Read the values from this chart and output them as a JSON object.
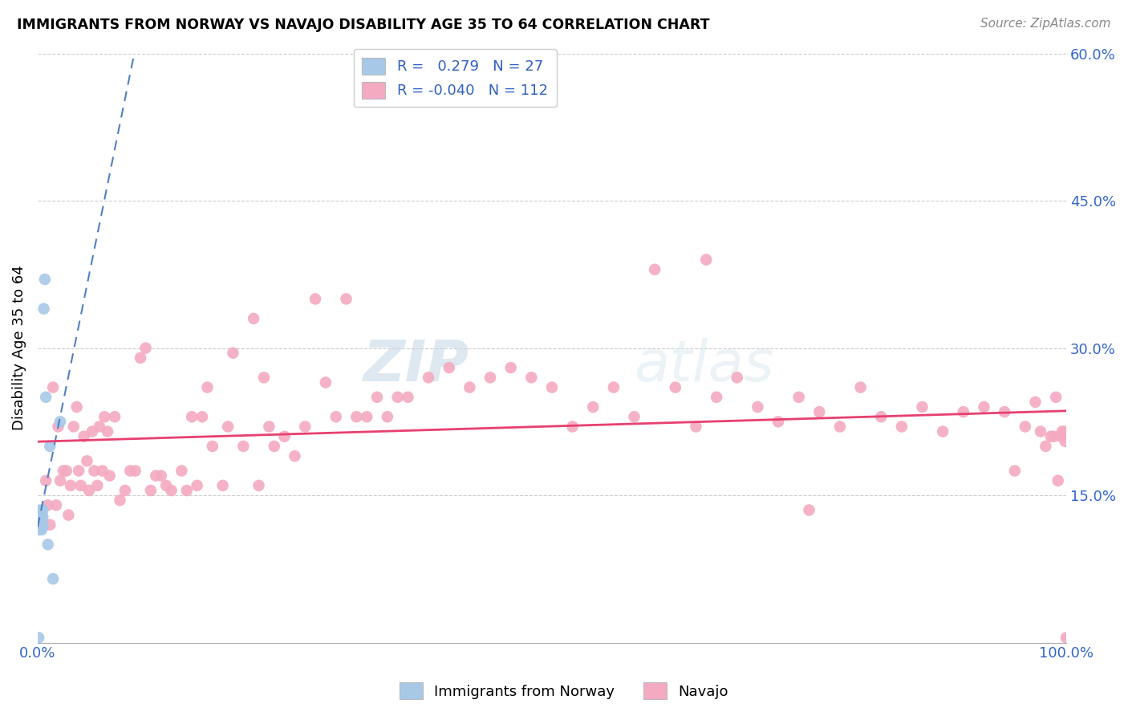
{
  "title": "IMMIGRANTS FROM NORWAY VS NAVAJO DISABILITY AGE 35 TO 64 CORRELATION CHART",
  "source": "Source: ZipAtlas.com",
  "ylabel": "Disability Age 35 to 64",
  "xlim": [
    0,
    1.0
  ],
  "ylim": [
    0,
    0.6
  ],
  "x_ticks": [
    0.0,
    0.1,
    0.2,
    0.3,
    0.4,
    0.5,
    0.6,
    0.7,
    0.8,
    0.9,
    1.0
  ],
  "x_tick_labels": [
    "0.0%",
    "",
    "",
    "",
    "",
    "",
    "",
    "",
    "",
    "",
    "100.0%"
  ],
  "y_ticks_right": [
    0.15,
    0.3,
    0.45,
    0.6
  ],
  "y_tick_labels_right": [
    "15.0%",
    "30.0%",
    "45.0%",
    "60.0%"
  ],
  "norway_color": "#a8c8e8",
  "navajo_color": "#f4aac0",
  "norway_line_color": "#5080c0",
  "navajo_line_color": "#e84070",
  "norway_R": 0.279,
  "norway_N": 27,
  "navajo_R": -0.04,
  "navajo_N": 112,
  "legend_R_color": "#3060c0",
  "watermark_zip": "ZIP",
  "watermark_atlas": "atlas",
  "norway_x": [
    0.001,
    0.001,
    0.001,
    0.002,
    0.002,
    0.002,
    0.002,
    0.003,
    0.003,
    0.003,
    0.003,
    0.003,
    0.004,
    0.004,
    0.004,
    0.004,
    0.005,
    0.005,
    0.005,
    0.005,
    0.006,
    0.007,
    0.008,
    0.01,
    0.012,
    0.015,
    0.022
  ],
  "norway_y": [
    0.005,
    0.115,
    0.125,
    0.118,
    0.12,
    0.125,
    0.128,
    0.118,
    0.12,
    0.125,
    0.13,
    0.135,
    0.115,
    0.12,
    0.125,
    0.13,
    0.118,
    0.12,
    0.128,
    0.135,
    0.34,
    0.37,
    0.25,
    0.1,
    0.2,
    0.065,
    0.225
  ],
  "navajo_x": [
    0.008,
    0.01,
    0.012,
    0.015,
    0.018,
    0.02,
    0.022,
    0.025,
    0.028,
    0.03,
    0.032,
    0.035,
    0.038,
    0.04,
    0.042,
    0.045,
    0.048,
    0.05,
    0.053,
    0.055,
    0.058,
    0.06,
    0.063,
    0.065,
    0.068,
    0.07,
    0.075,
    0.08,
    0.085,
    0.09,
    0.095,
    0.1,
    0.105,
    0.11,
    0.115,
    0.12,
    0.125,
    0.13,
    0.14,
    0.145,
    0.15,
    0.155,
    0.16,
    0.165,
    0.17,
    0.18,
    0.185,
    0.19,
    0.2,
    0.21,
    0.215,
    0.22,
    0.225,
    0.23,
    0.24,
    0.25,
    0.26,
    0.27,
    0.28,
    0.29,
    0.3,
    0.31,
    0.32,
    0.33,
    0.34,
    0.35,
    0.36,
    0.38,
    0.4,
    0.42,
    0.44,
    0.46,
    0.48,
    0.5,
    0.52,
    0.54,
    0.56,
    0.58,
    0.62,
    0.64,
    0.66,
    0.68,
    0.7,
    0.72,
    0.74,
    0.76,
    0.78,
    0.8,
    0.82,
    0.84,
    0.86,
    0.88,
    0.9,
    0.92,
    0.94,
    0.95,
    0.96,
    0.97,
    0.975,
    0.98,
    0.985,
    0.988,
    0.99,
    0.992,
    0.995,
    0.996,
    0.998,
    0.999,
    1.0,
    0.6,
    0.65,
    0.75
  ],
  "navajo_y": [
    0.165,
    0.14,
    0.12,
    0.26,
    0.14,
    0.22,
    0.165,
    0.175,
    0.175,
    0.13,
    0.16,
    0.22,
    0.24,
    0.175,
    0.16,
    0.21,
    0.185,
    0.155,
    0.215,
    0.175,
    0.16,
    0.22,
    0.175,
    0.23,
    0.215,
    0.17,
    0.23,
    0.145,
    0.155,
    0.175,
    0.175,
    0.29,
    0.3,
    0.155,
    0.17,
    0.17,
    0.16,
    0.155,
    0.175,
    0.155,
    0.23,
    0.16,
    0.23,
    0.26,
    0.2,
    0.16,
    0.22,
    0.295,
    0.2,
    0.33,
    0.16,
    0.27,
    0.22,
    0.2,
    0.21,
    0.19,
    0.22,
    0.35,
    0.265,
    0.23,
    0.35,
    0.23,
    0.23,
    0.25,
    0.23,
    0.25,
    0.25,
    0.27,
    0.28,
    0.26,
    0.27,
    0.28,
    0.27,
    0.26,
    0.22,
    0.24,
    0.26,
    0.23,
    0.26,
    0.22,
    0.25,
    0.27,
    0.24,
    0.225,
    0.25,
    0.235,
    0.22,
    0.26,
    0.23,
    0.22,
    0.24,
    0.215,
    0.235,
    0.24,
    0.235,
    0.175,
    0.22,
    0.245,
    0.215,
    0.2,
    0.21,
    0.21,
    0.25,
    0.165,
    0.21,
    0.215,
    0.215,
    0.205,
    0.005,
    0.38,
    0.39,
    0.135
  ]
}
